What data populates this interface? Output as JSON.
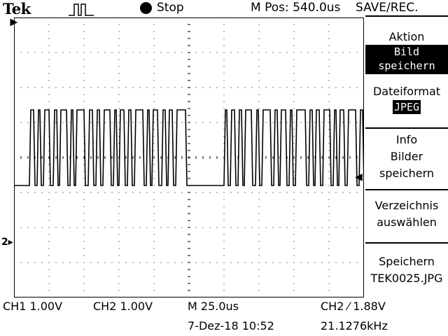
{
  "header": {
    "brand": "Tek",
    "trigger_icon": "pulse-trigger-icon",
    "run_state": "Stop",
    "m_pos": "M Pos: 540.0us",
    "menu_title": "SAVE/REC."
  },
  "menu": [
    {
      "label": "Aktion",
      "value": "Bild speichern"
    },
    {
      "label": "Dateiformat",
      "value": "JPEG"
    },
    {
      "label": "Info\nBilder\nspeichern"
    },
    {
      "label": "Verzeichnis\nauswählen"
    },
    {
      "label": "Speichern\nTEK0025.JPG"
    }
  ],
  "status": {
    "ch1": "CH1  1.00V",
    "ch2": "CH2  1.00V",
    "timebase": "M 25.0us",
    "trigger": "CH2  ⁄  1.88V",
    "datetime": "7-Dez-18 10:52",
    "frequency": "21.1276kHz"
  },
  "markers": {
    "trigger_level": "◀",
    "trigger_position": "▼",
    "channel2_label": "2"
  },
  "colors": {
    "background": "#ffffff",
    "trace": "#000000",
    "grid": "#000000"
  }
}
